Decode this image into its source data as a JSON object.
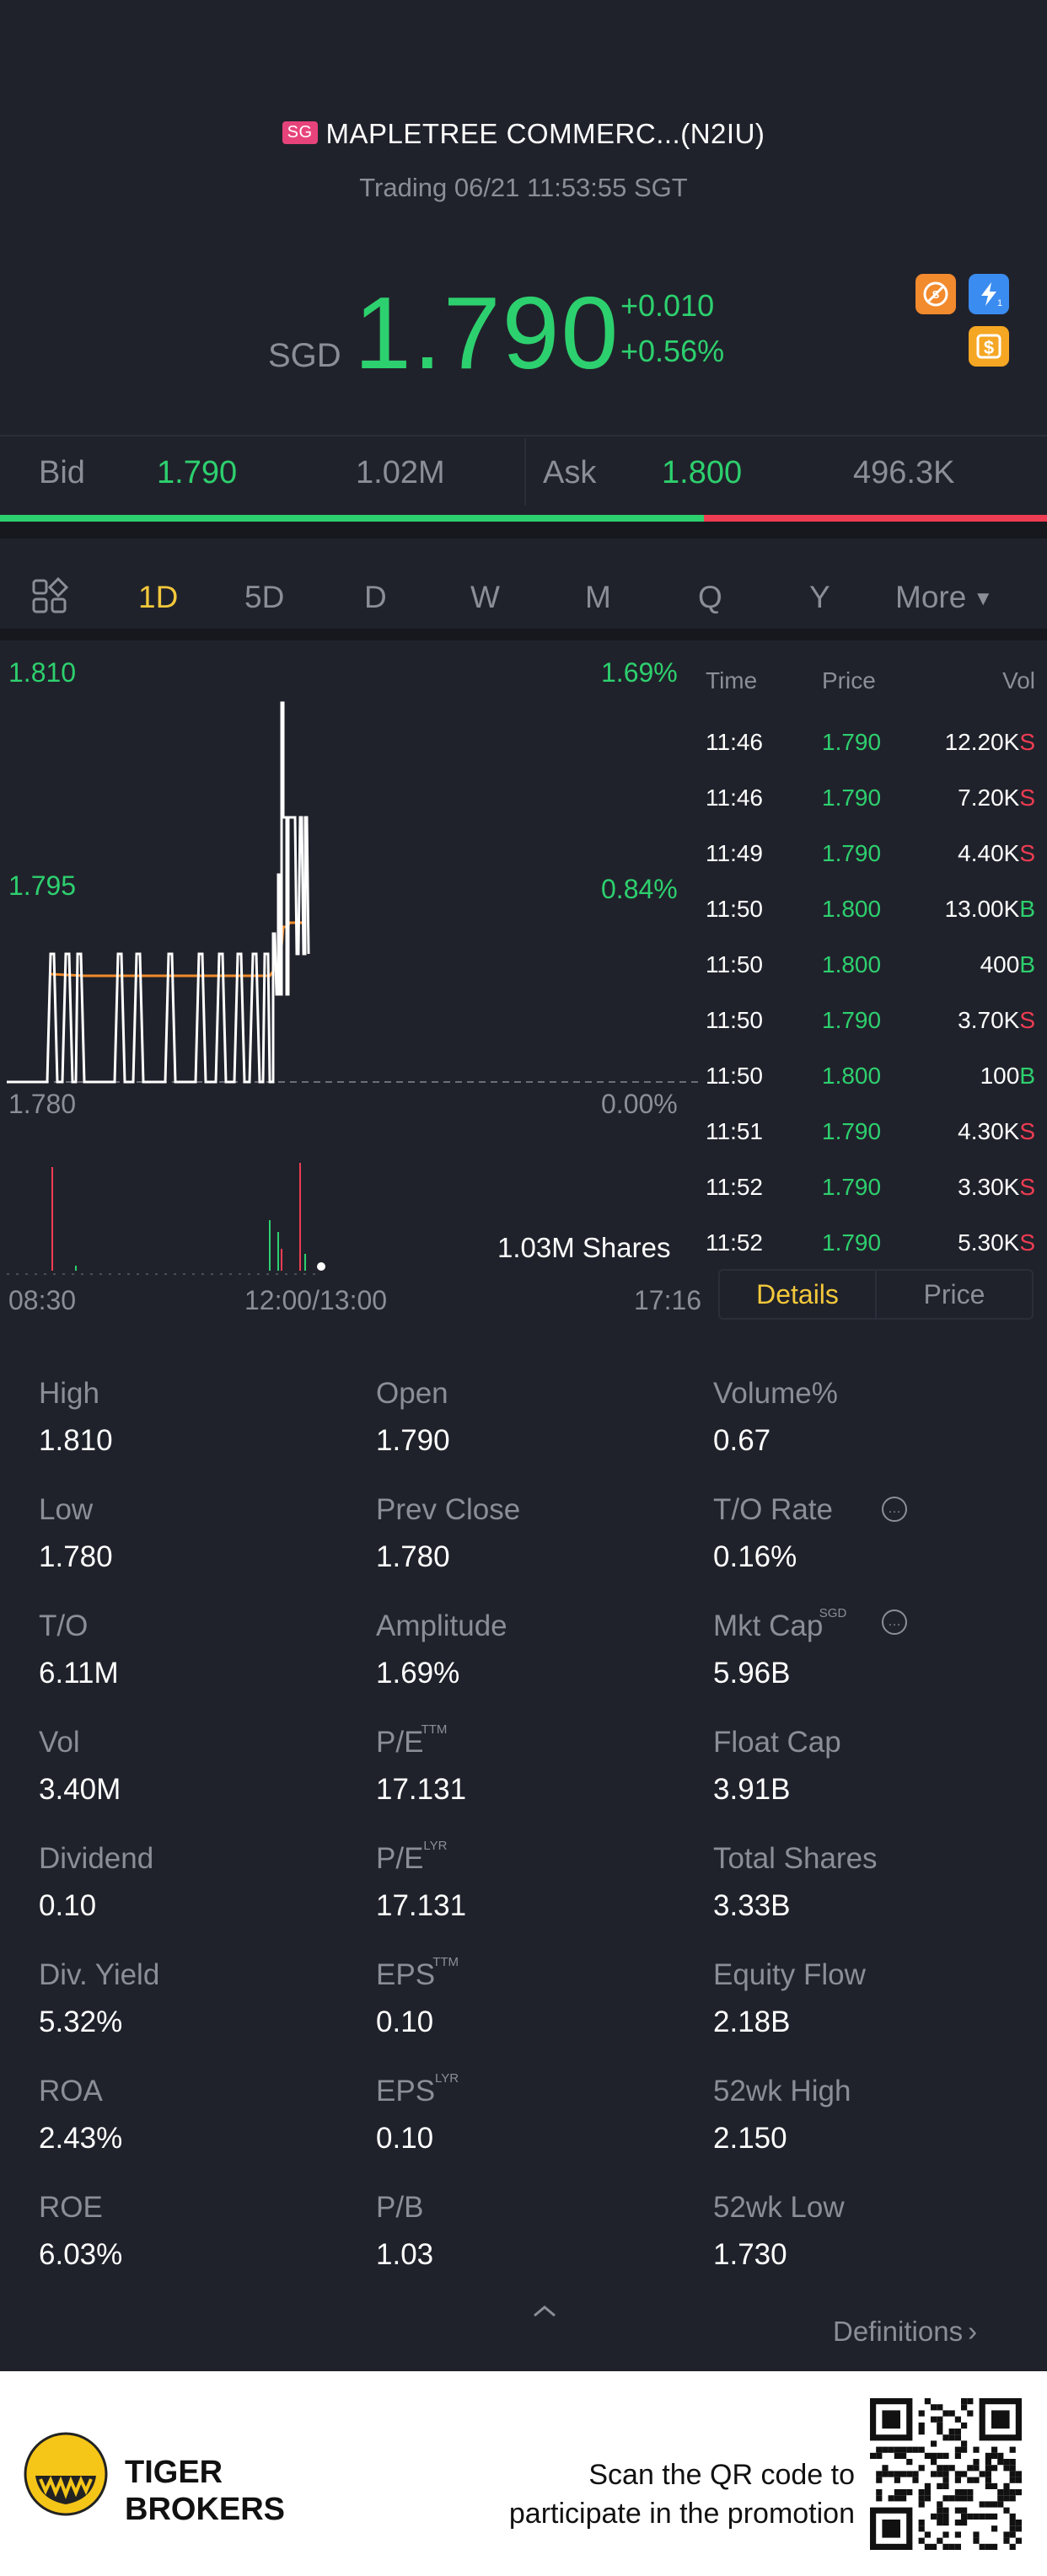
{
  "header": {
    "badge": "SG",
    "title": "MAPLETREE COMMERC...(N2IU)",
    "status": "Trading 06/21 11:53:55 SGT",
    "currency": "SGD",
    "price": "1.790",
    "change": "+0.010",
    "change_pct": "+0.56%"
  },
  "bid_ask": {
    "bid_label": "Bid",
    "bid_price": "1.790",
    "bid_size": "1.02M",
    "ask_label": "Ask",
    "ask_price": "1.800",
    "ask_size": "496.3K",
    "bid_ratio": 0.672
  },
  "tabs": {
    "items": [
      "1D",
      "5D",
      "D",
      "W",
      "M",
      "Q",
      "Y"
    ],
    "active": "1D",
    "more": "More"
  },
  "chart": {
    "y_top": "1.810",
    "y_mid": "1.795",
    "y_bot": "1.780",
    "pct_top": "1.69%",
    "pct_mid": "0.84%",
    "pct_bot": "0.00%",
    "volume_label": "1.03M Shares",
    "x_start": "08:30",
    "x_mid": "12:00/13:00",
    "x_end": "17:16"
  },
  "trades": {
    "headers": {
      "time": "Time",
      "price": "Price",
      "vol": "Vol"
    },
    "rows": [
      {
        "time": "11:46",
        "price": "1.790",
        "vol": "12.20K",
        "side": "S"
      },
      {
        "time": "11:46",
        "price": "1.790",
        "vol": "7.20K",
        "side": "S"
      },
      {
        "time": "11:49",
        "price": "1.790",
        "vol": "4.40K",
        "side": "S"
      },
      {
        "time": "11:50",
        "price": "1.800",
        "vol": "13.00K",
        "side": "B"
      },
      {
        "time": "11:50",
        "price": "1.800",
        "vol": "400",
        "side": "B"
      },
      {
        "time": "11:50",
        "price": "1.790",
        "vol": "3.70K",
        "side": "S"
      },
      {
        "time": "11:50",
        "price": "1.800",
        "vol": "100",
        "side": "B"
      },
      {
        "time": "11:51",
        "price": "1.790",
        "vol": "4.30K",
        "side": "S"
      },
      {
        "time": "11:52",
        "price": "1.790",
        "vol": "3.30K",
        "side": "S"
      },
      {
        "time": "11:52",
        "price": "1.790",
        "vol": "5.30K",
        "side": "S"
      }
    ]
  },
  "detail_tabs": {
    "details": "Details",
    "price": "Price"
  },
  "stats": {
    "high": {
      "label": "High",
      "value": "1.810"
    },
    "open": {
      "label": "Open",
      "value": "1.790"
    },
    "volume_pct": {
      "label": "Volume%",
      "value": "0.67"
    },
    "low": {
      "label": "Low",
      "value": "1.780"
    },
    "prev_close": {
      "label": "Prev Close",
      "value": "1.780"
    },
    "to_rate": {
      "label": "T/O Rate",
      "value": "0.16%"
    },
    "to": {
      "label": "T/O",
      "value": "6.11M"
    },
    "amplitude": {
      "label": "Amplitude",
      "value": "1.69%"
    },
    "mkt_cap": {
      "label": "Mkt Cap",
      "sup": "SGD",
      "value": "5.96B"
    },
    "vol": {
      "label": "Vol",
      "value": "3.40M"
    },
    "pe_ttm": {
      "label": "P/E",
      "sup": "TTM",
      "value": "17.131"
    },
    "float_cap": {
      "label": "Float Cap",
      "value": "3.91B"
    },
    "dividend": {
      "label": "Dividend",
      "value": "0.10"
    },
    "pe_lyr": {
      "label": "P/E",
      "sup": "LYR",
      "value": "17.131"
    },
    "total_shares": {
      "label": "Total Shares",
      "value": "3.33B"
    },
    "div_yield": {
      "label": "Div. Yield",
      "value": "5.32%"
    },
    "eps_ttm": {
      "label": "EPS",
      "sup": "TTM",
      "value": "0.10"
    },
    "equity_flow": {
      "label": "Equity Flow",
      "value": "2.18B"
    },
    "roa": {
      "label": "ROA",
      "value": "2.43%"
    },
    "eps_lyr": {
      "label": "EPS",
      "sup": "LYR",
      "value": "0.10"
    },
    "wk52_high": {
      "label": "52wk High",
      "value": "2.150"
    },
    "roe": {
      "label": "ROE",
      "value": "6.03%"
    },
    "pb": {
      "label": "P/B",
      "value": "1.03"
    },
    "wk52_low": {
      "label": "52wk Low",
      "value": "1.730"
    }
  },
  "definitions": "Definitions",
  "footer": {
    "brand_line1": "TIGER",
    "brand_line2": "BROKERS",
    "promo_line1": "Scan the QR code to",
    "promo_line2": "participate in the promotion"
  },
  "colors": {
    "background": "#20222b",
    "up": "#2dd06e",
    "down": "#ee3c52",
    "accent": "#f3c83b"
  }
}
